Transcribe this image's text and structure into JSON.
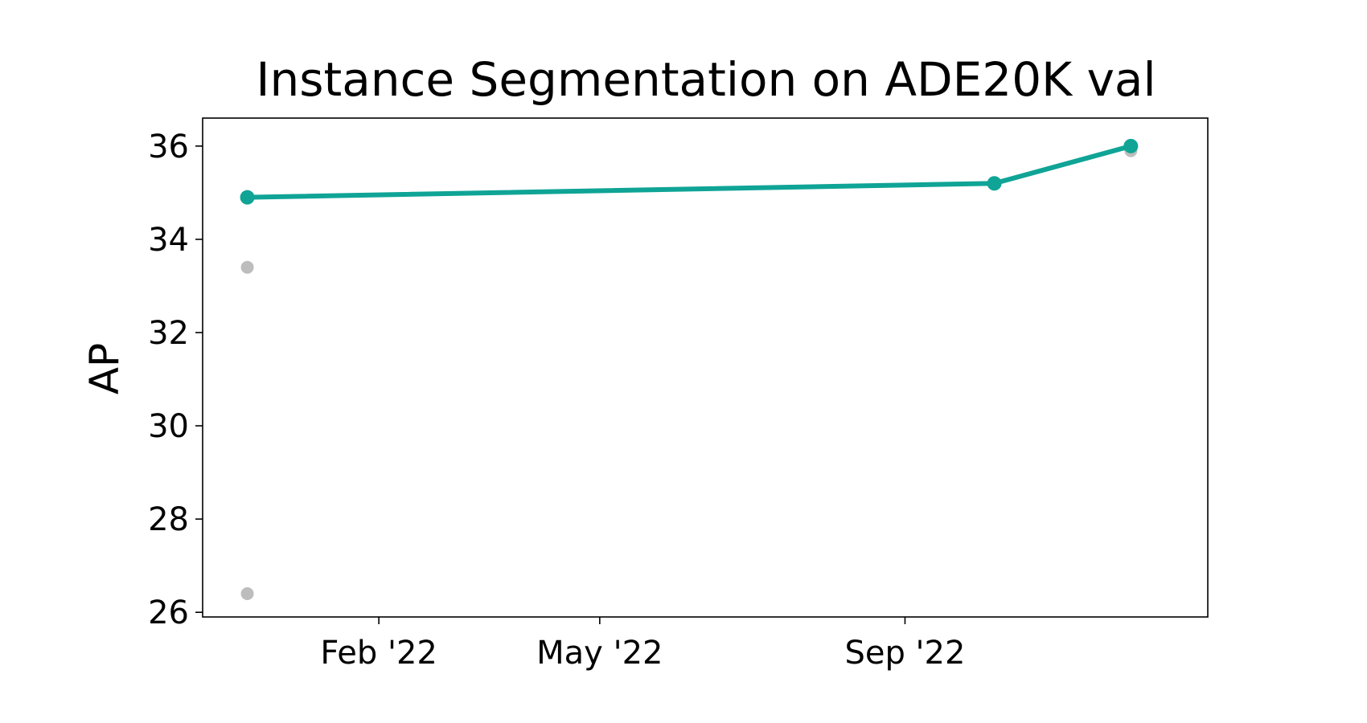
{
  "chart_data": {
    "type": "line",
    "title": "Instance Segmentation on ADE20K val",
    "xlabel": "",
    "ylabel": "AP",
    "x_axis": {
      "scale": "time",
      "range": [
        "2021-11-22",
        "2023-01-01"
      ],
      "ticks": [
        {
          "date": "2022-02-01",
          "label": "Feb '22"
        },
        {
          "date": "2022-05-01",
          "label": "May '22"
        },
        {
          "date": "2022-09-01",
          "label": "Sep '22"
        }
      ]
    },
    "y_axis": {
      "range": [
        25.9,
        36.6
      ],
      "ticks": [
        26,
        28,
        30,
        32,
        34,
        36
      ]
    },
    "grid": false,
    "legend": "none",
    "series": [
      {
        "role": "state-of-the-art",
        "color": "#0fa496",
        "marker": "circle",
        "line": true,
        "points": [
          {
            "x": "2021-12-10",
            "y": 34.9
          },
          {
            "x": "2022-10-07",
            "y": 35.2
          },
          {
            "x": "2022-12-01",
            "y": 36.0
          }
        ]
      },
      {
        "role": "other-results",
        "color": "#bdbdbd",
        "marker": "circle",
        "line": false,
        "points": [
          {
            "x": "2021-12-10",
            "y": 33.4
          },
          {
            "x": "2021-12-10",
            "y": 26.4
          },
          {
            "x": "2022-12-01",
            "y": 35.9
          }
        ]
      }
    ]
  }
}
